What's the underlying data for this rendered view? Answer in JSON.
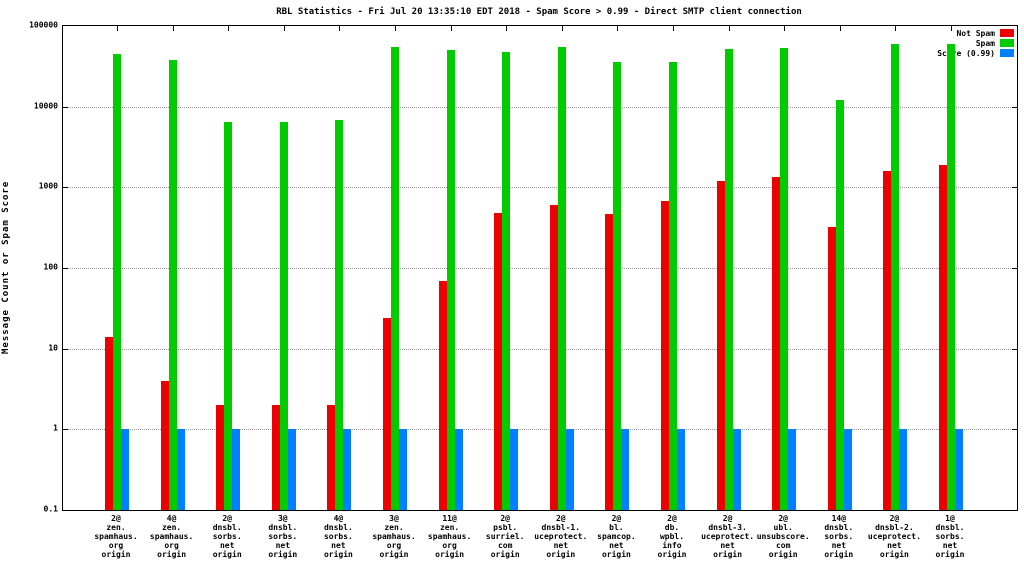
{
  "title": "RBL Statistics - Fri Jul 20 13:35:10 EDT 2018 - Spam Score > 0.99 - Direct SMTP client connection",
  "chart_data": {
    "type": "bar",
    "scale": "log",
    "title": "RBL Statistics - Fri Jul 20 13:35:10 EDT 2018 - Spam Score > 0.99 - Direct SMTP client connection",
    "ylabel": "Message Count or Spam Score",
    "ylim": [
      0.1,
      100000
    ],
    "y_ticks": [
      "100000",
      "10000",
      "1000",
      "100",
      "10",
      "1",
      "0.1"
    ],
    "grid": "horizontal-dotted",
    "legend_position": "top-right",
    "categories": [
      [
        "2@",
        "zen.",
        "spamhaus.",
        "org",
        "origin"
      ],
      [
        "4@",
        "zen.",
        "spamhaus.",
        "org",
        "origin"
      ],
      [
        "2@",
        "dnsbl.",
        "sorbs.",
        "net",
        "origin"
      ],
      [
        "3@",
        "dnsbl.",
        "sorbs.",
        "net",
        "origin"
      ],
      [
        "4@",
        "dnsbl.",
        "sorbs.",
        "net",
        "origin"
      ],
      [
        "3@",
        "zen.",
        "spamhaus.",
        "org",
        "origin"
      ],
      [
        "11@",
        "zen.",
        "spamhaus.",
        "org",
        "origin"
      ],
      [
        "2@",
        "psbl.",
        "surriel.",
        "com",
        "origin"
      ],
      [
        "2@",
        "dnsbl-1.",
        "uceprotect.",
        "net",
        "origin"
      ],
      [
        "2@",
        "bl.",
        "spamcop.",
        "net",
        "origin"
      ],
      [
        "2@",
        "db.",
        "wpbl.",
        "info",
        "origin"
      ],
      [
        "2@",
        "dnsbl-3.",
        "uceprotect.",
        "net",
        "origin"
      ],
      [
        "2@",
        "ubl.",
        "unsubscore.",
        "com",
        "origin"
      ],
      [
        "14@",
        "dnsbl.",
        "sorbs.",
        "net",
        "origin"
      ],
      [
        "2@",
        "dnsbl-2.",
        "uceprotect.",
        "net",
        "origin"
      ],
      [
        "1@",
        "dnsbl.",
        "sorbs.",
        "net",
        "origin"
      ]
    ],
    "series": [
      {
        "name": "Not Spam",
        "color": "#ee0000",
        "values": [
          14,
          4,
          2,
          2,
          2,
          24,
          70,
          480,
          600,
          470,
          680,
          1200,
          1350,
          320,
          1600,
          1900
        ]
      },
      {
        "name": "Spam",
        "color": "#00cc00",
        "values": [
          45000,
          38000,
          6500,
          6500,
          6800,
          55000,
          50000,
          48000,
          55000,
          36000,
          36000,
          52000,
          53000,
          12000,
          60000,
          60000
        ]
      },
      {
        "name": "Score (0.99)",
        "color": "#0080ff",
        "values": [
          1,
          1,
          1,
          1,
          1,
          1,
          1,
          1,
          1,
          1,
          1,
          1,
          1,
          1,
          1,
          1
        ]
      }
    ]
  }
}
